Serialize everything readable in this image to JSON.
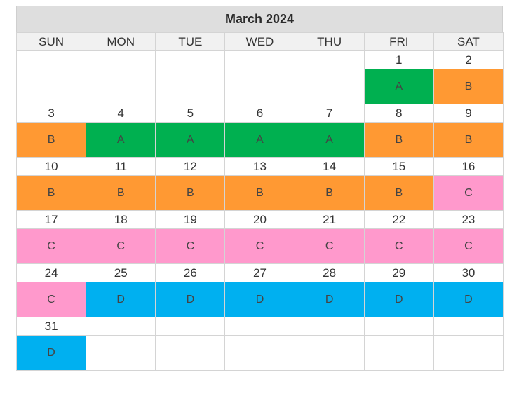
{
  "calendar": {
    "title": "March 2024",
    "weekdays": [
      "SUN",
      "MON",
      "TUE",
      "WED",
      "THU",
      "FRI",
      "SAT"
    ],
    "shift_colors": {
      "A": "#00b050",
      "B": "#ff9933",
      "C": "#ff99cc",
      "D": "#00b0f0"
    },
    "weeks": [
      {
        "days": [
          "",
          "",
          "",
          "",
          "",
          "1",
          "2"
        ],
        "shifts": [
          "",
          "",
          "",
          "",
          "",
          "A",
          "B"
        ]
      },
      {
        "days": [
          "3",
          "4",
          "5",
          "6",
          "7",
          "8",
          "9"
        ],
        "shifts": [
          "B",
          "A",
          "A",
          "A",
          "A",
          "B",
          "B"
        ]
      },
      {
        "days": [
          "10",
          "11",
          "12",
          "13",
          "14",
          "15",
          "16"
        ],
        "shifts": [
          "B",
          "B",
          "B",
          "B",
          "B",
          "B",
          "C"
        ]
      },
      {
        "days": [
          "17",
          "18",
          "19",
          "20",
          "21",
          "22",
          "23"
        ],
        "shifts": [
          "C",
          "C",
          "C",
          "C",
          "C",
          "C",
          "C"
        ]
      },
      {
        "days": [
          "24",
          "25",
          "26",
          "27",
          "28",
          "29",
          "30"
        ],
        "shifts": [
          "C",
          "D",
          "D",
          "D",
          "D",
          "D",
          "D"
        ]
      },
      {
        "days": [
          "31",
          "",
          "",
          "",
          "",
          "",
          ""
        ],
        "shifts": [
          "D",
          "",
          "",
          "",
          "",
          "",
          ""
        ]
      }
    ]
  }
}
